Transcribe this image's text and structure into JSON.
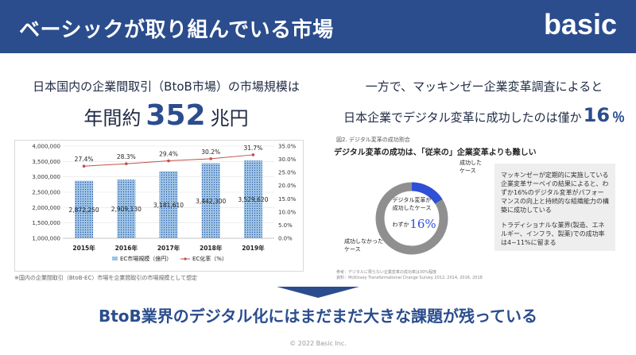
{
  "header": {
    "title": "ベーシックが取り組んでいる市場",
    "logo": "basic"
  },
  "left": {
    "subtitle": "日本国内の企業間取引（BtoB市場）の市場規模は",
    "prefix": "年間約",
    "value": "352",
    "unit": "兆円"
  },
  "right": {
    "line1": "一方で、マッキンゼー企業変革調査によると",
    "line2": "日本企業でデジタル変革に成功したのは僅か",
    "value": "16",
    "pct": "％"
  },
  "chart_data": {
    "type": "bar",
    "categories": [
      "2015年",
      "2016年",
      "2017年",
      "2018年",
      "2019年"
    ],
    "series": [
      {
        "name": "EC市場規模（億円）",
        "values": [
          2872250,
          2909130,
          3181610,
          3442300,
          3529620
        ]
      },
      {
        "name": "EC化率（%）",
        "values": [
          27.4,
          28.3,
          29.4,
          30.2,
          31.7
        ]
      }
    ],
    "bar_labels": [
      "2,872,250",
      "2,909,130",
      "3,181,610",
      "3,442,300",
      "3,529,620"
    ],
    "line_labels": [
      "27.4%",
      "28.3%",
      "29.4%",
      "30.2%",
      "31.7%"
    ],
    "y_left_ticks": [
      "4,000,000",
      "3,500,000",
      "3,000,000",
      "2,500,000",
      "2,000,000",
      "1,500,000",
      "1,000,000"
    ],
    "y_right_ticks": [
      "35.0%",
      "30.0%",
      "25.0%",
      "20.0%",
      "15.0%",
      "10.0%",
      "5.0%",
      "0.0%"
    ],
    "ylim_left": [
      1000000,
      4000000
    ],
    "ylim_right": [
      0,
      35
    ],
    "colors": {
      "bar": "#9dc3e6",
      "bar_dot": "#1f4e9a",
      "line": "#c0504d"
    },
    "legend": "bottom",
    "note": "※国内の企業間取引（BtoB-EC）市場を企業間取引の市場規模として想定"
  },
  "figure": {
    "caption": "図2. デジタル変革の成功割合",
    "title": "デジタル変革の成功は、「従来の」企業変革よりも難しい",
    "success_label_1": "成功した",
    "success_label_2": "ケース",
    "fail_label_1": "成功しなかった",
    "fail_label_2": "ケース",
    "center_1": "デジタル変革が",
    "center_2": "成功したケース",
    "center_prefix": "わずか",
    "center_value": "16%",
    "success_share": 16,
    "colors": {
      "success": "#2e4fd6",
      "fail": "#8f8f8f"
    },
    "source_1": "参考：デジタルに限らない企業変革の成功率は30%程度",
    "source_2": "資料：McKinsey Transformational Change Survey 2012, 2014, 2016, 2018"
  },
  "note_box": {
    "p1": "マッキンゼーが定期的に実施している企業変革サーベイの結果によると、わずか16%のデジタル変革がパフォーマンスの向上と持続的な組織能力の構築に成功している",
    "p2": "トラディショナルな業界(製造、エネルギー、インフラ、製薬)での成功率は4~11%に留まる"
  },
  "conclusion": "BtoB業界のデジタル化にはまだまだ大きな課題が残っている",
  "footer": "© 2022 Basic Inc."
}
